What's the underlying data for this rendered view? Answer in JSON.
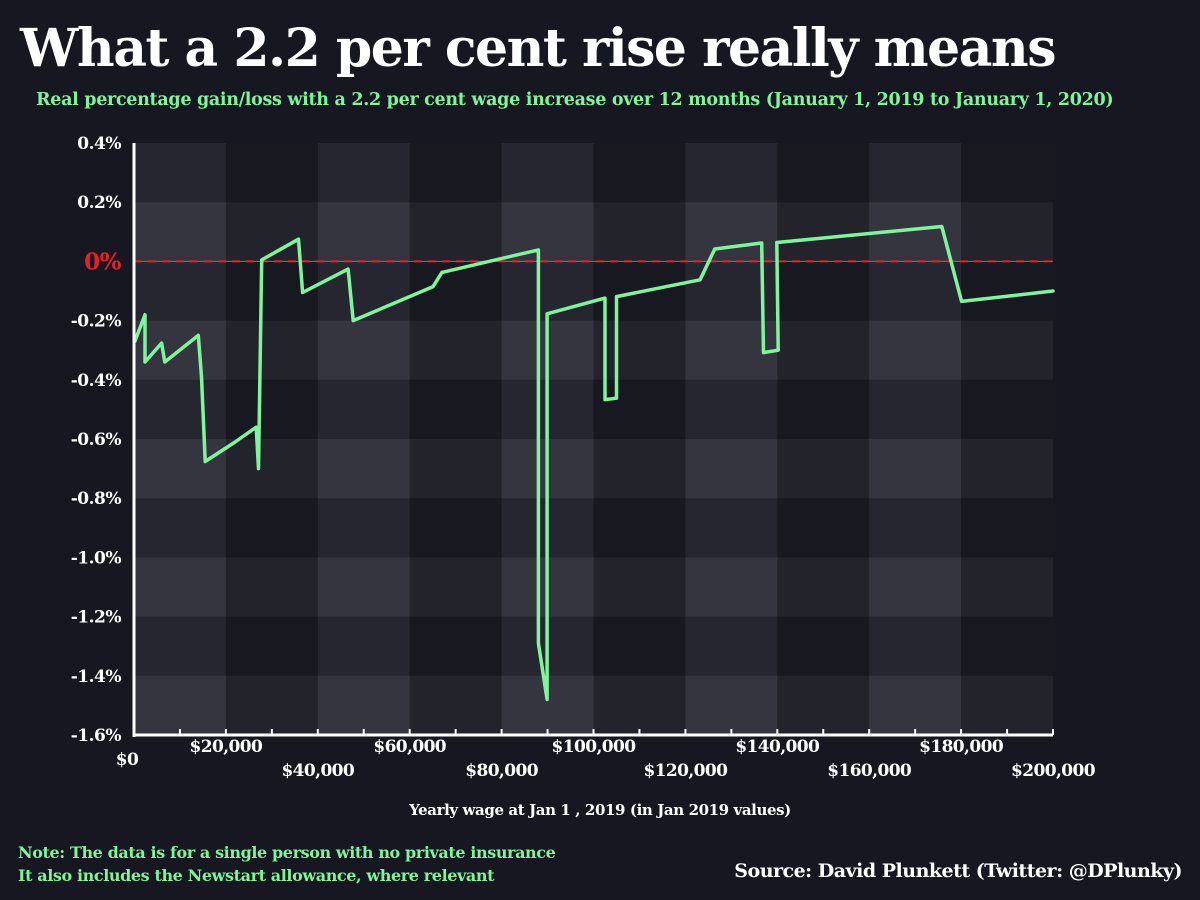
{
  "header": {
    "title": "What a 2.2 per cent rise really means",
    "subtitle": "Real percentage gain/loss with a 2.2 per cent wage increase over 12 months (January 1, 2019 to January 1, 2020)"
  },
  "footer": {
    "note_line1": "Note: The data is for a single person with no private insurance",
    "note_line2": "It also includes the Newstart allowance, where relevant",
    "source": "Source: David Plunkett (Twitter: @DPlunky)"
  },
  "colors": {
    "background": "#171722",
    "line": "#7ef59a",
    "zero_line": "#e8202a",
    "text": "#ffffff"
  },
  "chart_data": {
    "type": "line",
    "title": "What a 2.2 per cent rise really means",
    "xlabel": "Yearly wage at Jan 1 , 2019 (in  Jan 2019  values)",
    "ylabel": "",
    "xlim": [
      0,
      200000
    ],
    "ylim": [
      -1.6,
      0.4
    ],
    "grid": "alternating banded background",
    "x_ticks": [
      0,
      20000,
      40000,
      60000,
      80000,
      100000,
      120000,
      140000,
      160000,
      180000,
      200000
    ],
    "x_tick_labels": [
      "$0",
      "$20,000",
      "$40,000",
      "$60,000",
      "$80,000",
      "$100,000",
      "$120,000",
      "$140,000",
      "$160,000",
      "$180,000",
      "$200,000"
    ],
    "y_ticks": [
      0.4,
      0.2,
      0,
      -0.2,
      -0.4,
      -0.6,
      -0.8,
      -1.0,
      -1.2,
      -1.4,
      -1.6
    ],
    "y_tick_labels": [
      "0.4%",
      "0.2%",
      "0%",
      "-0.2%",
      "-0.4%",
      "-0.6%",
      "-0.8%",
      "-1.0%",
      "-1.2%",
      "-1.4%",
      "-1.6%"
    ],
    "reference_line": {
      "y": 0,
      "style": "dashed",
      "color": "#e8202a"
    },
    "series": [
      {
        "x": [
          200,
          2400,
          2400,
          6000,
          6700,
          14000,
          14700,
          15500,
          22000,
          26600,
          27100,
          27800,
          35800,
          36700,
          46600,
          47700,
          65100,
          67000,
          88000,
          88000,
          89900,
          89900,
          102500,
          102500,
          105000,
          105000,
          123200,
          126400,
          136600,
          137000,
          140200,
          139900,
          175800,
          180100,
          200000
        ],
        "y": [
          -0.27,
          -0.18,
          -0.34,
          -0.276,
          -0.34,
          -0.25,
          -0.39,
          -0.676,
          -0.61,
          -0.56,
          -0.7,
          0.005,
          0.075,
          -0.105,
          -0.026,
          -0.2,
          -0.085,
          -0.037,
          0.039,
          -1.29,
          -1.48,
          -0.177,
          -0.124,
          -0.467,
          -0.462,
          -0.119,
          -0.062,
          0.042,
          0.062,
          -0.308,
          -0.3,
          0.064,
          0.118,
          -0.135,
          -0.1
        ]
      }
    ]
  }
}
